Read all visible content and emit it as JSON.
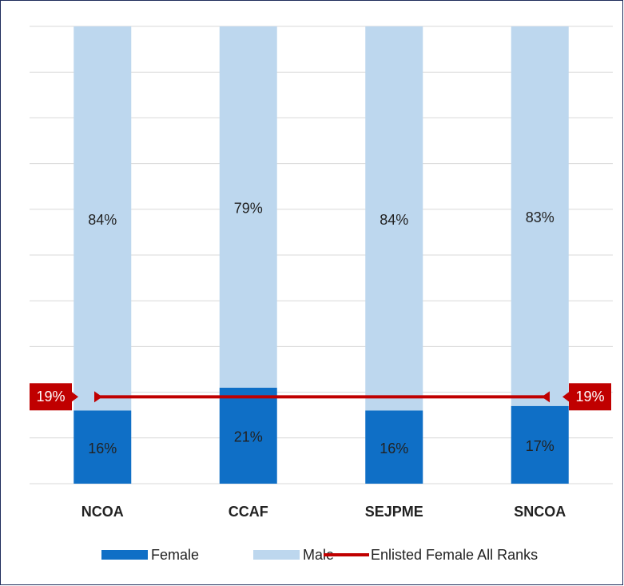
{
  "chart_data": {
    "type": "stacked_bar",
    "categories": [
      "NCOA",
      "CCAF",
      "SEJPME",
      "SNCOA"
    ],
    "series": [
      {
        "name": "Female",
        "color": "#0f6fc6",
        "values": [
          16,
          21,
          16,
          17
        ],
        "value_labels": [
          "16%",
          "21%",
          "16%",
          "17%"
        ]
      },
      {
        "name": "Male",
        "color": "#bdd7ee",
        "values": [
          84,
          79,
          84,
          83
        ],
        "value_labels": [
          "84%",
          "79%",
          "84%",
          "83%"
        ]
      }
    ],
    "reference_line": {
      "name": "Enlisted Female All Ranks",
      "color": "#c00000",
      "value": 19,
      "value_label": "19%"
    },
    "ylim": [
      0,
      100
    ],
    "yticks": [
      0,
      10,
      20,
      30,
      40,
      50,
      60,
      70,
      80,
      90,
      100
    ],
    "grid": true,
    "legend": "bottom"
  }
}
